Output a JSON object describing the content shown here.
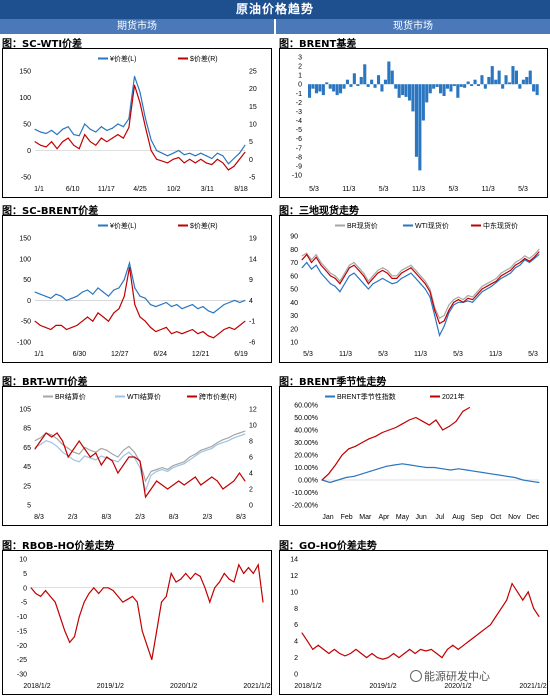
{
  "header": {
    "title": "原油价格趋势",
    "left_section": "期货市场",
    "right_section": "现货市场"
  },
  "watermark": "能源研发中心",
  "colors": {
    "blue": "#2a76c0",
    "red": "#c00000",
    "gray": "#a6a6a6",
    "lightblue": "#9dc3e6",
    "header": "#1e4f8f"
  },
  "chart_data": [
    {
      "id": "sc_wti",
      "type": "line",
      "title": "图：SC-WTI价差",
      "x_ticks": [
        "1/1",
        "6/10",
        "11/17",
        "4/25",
        "10/2",
        "3/11",
        "8/18"
      ],
      "y_left_ticks": [
        "150",
        "100",
        "50",
        "0",
        "-50"
      ],
      "y_right_ticks": [
        "25",
        "20",
        "15",
        "10",
        "5",
        "0",
        "-5"
      ],
      "ylim_left": [
        -50,
        150
      ],
      "ylim_right": [
        -5,
        25
      ],
      "series": [
        {
          "name": "¥价差(L)",
          "axis": "left",
          "color": "blue",
          "values": [
            40,
            35,
            32,
            38,
            30,
            40,
            45,
            30,
            28,
            50,
            40,
            35,
            45,
            38,
            42,
            50,
            45,
            60,
            140,
            110,
            60,
            20,
            0,
            -5,
            -10,
            -5,
            0,
            -8,
            -5,
            -10,
            -5,
            -10,
            -15,
            -5,
            -10,
            -25,
            -15,
            -5,
            10
          ]
        },
        {
          "name": "$价差(R)",
          "axis": "right",
          "color": "red",
          "values": [
            5,
            4,
            3.5,
            5,
            3,
            5,
            6,
            4,
            3,
            7,
            5,
            4,
            6,
            5,
            6,
            7,
            6,
            9,
            21,
            16,
            9,
            2.5,
            0,
            -0.5,
            -1,
            0,
            0.5,
            -1,
            0,
            -1,
            0,
            -1,
            -1.5,
            0,
            -1,
            -3,
            -2,
            0,
            2
          ]
        }
      ]
    },
    {
      "id": "brent",
      "type": "bar",
      "title": "图：BRENT基差",
      "x_ticks": [
        "5/3",
        "11/3",
        "5/3",
        "11/3",
        "5/3",
        "11/3",
        "5/3"
      ],
      "y_ticks": [
        "3",
        "2",
        "1",
        "0",
        "-1",
        "-2",
        "-3",
        "-4",
        "-5",
        "-6",
        "-7",
        "-8",
        "-9",
        "-10"
      ],
      "ylim": [
        -10,
        3
      ],
      "series": [
        {
          "name": "",
          "color": "blue",
          "values": [
            -1.5,
            -0.5,
            -1,
            -0.8,
            -1.2,
            0.2,
            -0.5,
            -0.8,
            -1.2,
            -1,
            -0.5,
            0.5,
            -0.3,
            1.2,
            -0.2,
            0.8,
            2.2,
            -0.3,
            0.5,
            -0.4,
            1,
            -0.8,
            0.5,
            2.5,
            1.5,
            -0.5,
            -1.5,
            -1.2,
            -1.4,
            -1.8,
            -3,
            -8,
            -9.5,
            -4,
            -2,
            -1,
            -0.5,
            -0.3,
            -1,
            -1.3,
            -0.5,
            -0.8,
            -0.2,
            -1.5,
            -0.3,
            -0.4,
            0.3,
            -0.2,
            0.5,
            -0.2,
            1,
            -0.5,
            0.8,
            2,
            0.5,
            1.5,
            -0.5,
            1,
            0.2,
            2,
            1.5,
            -0.5,
            0.5,
            0.8,
            1.5,
            -0.8,
            -1.2
          ]
        }
      ]
    },
    {
      "id": "sc_brent",
      "type": "line",
      "title": "图：SC-BRENT价差",
      "x_ticks": [
        "1/1",
        "6/30",
        "12/27",
        "6/24",
        "12/21",
        "6/19"
      ],
      "y_left_ticks": [
        "150",
        "100",
        "50",
        "0",
        "-50",
        "-100"
      ],
      "y_right_ticks": [
        "19",
        "14",
        "9",
        "4",
        "-1",
        "-6"
      ],
      "ylim_left": [
        -100,
        150
      ],
      "ylim_right": [
        -6,
        19
      ],
      "series": [
        {
          "name": "¥价差(L)",
          "axis": "left",
          "color": "blue",
          "values": [
            20,
            15,
            10,
            5,
            15,
            10,
            0,
            5,
            10,
            20,
            25,
            15,
            30,
            20,
            10,
            25,
            30,
            50,
            90,
            30,
            10,
            5,
            -10,
            -15,
            -10,
            -5,
            -15,
            -10,
            -20,
            -15,
            -10,
            -20,
            -15,
            -25,
            -30,
            -20,
            -10,
            -5,
            0,
            -5,
            0
          ]
        },
        {
          "name": "$价差(R)",
          "axis": "right",
          "color": "red",
          "values": [
            -1,
            -2,
            -2.5,
            -3,
            -2,
            -2,
            -3,
            -2.5,
            -2,
            -1,
            0,
            -1,
            1,
            0,
            -1,
            1,
            2,
            5,
            12,
            3,
            0,
            -1,
            -2.5,
            -3.5,
            -3,
            -2.5,
            -4,
            -3.5,
            -4,
            -3.5,
            -3,
            -4,
            -3.5,
            -4.5,
            -5,
            -4,
            -3,
            -2.5,
            -3,
            -2,
            -1
          ]
        }
      ]
    },
    {
      "id": "spot3",
      "type": "line",
      "title": "图：三地现货走势",
      "x_ticks": [
        "5/3",
        "11/3",
        "5/3",
        "11/3",
        "5/3",
        "11/3",
        "5/3"
      ],
      "y_ticks": [
        "90",
        "80",
        "70",
        "60",
        "50",
        "40",
        "30",
        "20",
        "10"
      ],
      "ylim": [
        10,
        90
      ],
      "series": [
        {
          "name": "BR现货价",
          "color": "gray",
          "values": [
            75,
            77,
            72,
            76,
            70,
            66,
            62,
            60,
            56,
            62,
            68,
            70,
            66,
            62,
            56,
            60,
            64,
            66,
            64,
            60,
            60,
            64,
            66,
            68,
            64,
            60,
            56,
            50,
            36,
            28,
            30,
            38,
            42,
            44,
            42,
            45,
            44,
            48,
            52,
            54,
            56,
            58,
            62,
            64,
            66,
            70,
            72,
            75,
            73,
            76,
            80
          ]
        },
        {
          "name": "WTI现货价",
          "color": "blue",
          "values": [
            66,
            70,
            65,
            68,
            62,
            58,
            54,
            52,
            48,
            54,
            60,
            62,
            58,
            54,
            50,
            54,
            56,
            58,
            56,
            54,
            55,
            58,
            60,
            62,
            58,
            54,
            50,
            44,
            30,
            15,
            22,
            32,
            38,
            40,
            40,
            41,
            40,
            44,
            48,
            50,
            52,
            55,
            58,
            60,
            62,
            66,
            68,
            72,
            70,
            73,
            76
          ]
        },
        {
          "name": "中东现货价",
          "color": "red",
          "values": [
            72,
            76,
            70,
            74,
            68,
            64,
            60,
            58,
            54,
            60,
            66,
            68,
            64,
            60,
            54,
            58,
            62,
            64,
            62,
            58,
            58,
            62,
            64,
            66,
            62,
            58,
            54,
            48,
            34,
            24,
            26,
            34,
            40,
            42,
            40,
            43,
            42,
            46,
            50,
            52,
            54,
            56,
            60,
            62,
            64,
            68,
            70,
            73,
            71,
            74,
            78
          ]
        }
      ]
    },
    {
      "id": "brt_wti",
      "type": "line",
      "title": "图：BRT-WTI价差",
      "x_ticks": [
        "8/3",
        "2/3",
        "8/3",
        "2/3",
        "8/3",
        "2/3",
        "8/3"
      ],
      "y_left_ticks": [
        "105",
        "85",
        "65",
        "45",
        "25",
        "5"
      ],
      "y_right_ticks": [
        "12",
        "10",
        "8",
        "6",
        "4",
        "2",
        "0"
      ],
      "ylim_left": [
        5,
        105
      ],
      "ylim_right": [
        0,
        12
      ],
      "series": [
        {
          "name": "BR结算价",
          "axis": "left",
          "color": "gray",
          "values": [
            72,
            75,
            80,
            78,
            74,
            68,
            64,
            60,
            58,
            65,
            62,
            60,
            64,
            62,
            58,
            55,
            62,
            66,
            60,
            50,
            30,
            40,
            42,
            44,
            42,
            46,
            48,
            50,
            55,
            58,
            62,
            64,
            66,
            70,
            73,
            75,
            78,
            80,
            82
          ]
        },
        {
          "name": "WTI结算价",
          "axis": "left",
          "color": "lightblue",
          "values": [
            65,
            68,
            72,
            70,
            66,
            60,
            56,
            52,
            50,
            56,
            54,
            52,
            56,
            54,
            52,
            50,
            56,
            60,
            54,
            44,
            20,
            36,
            40,
            42,
            40,
            44,
            46,
            48,
            52,
            56,
            60,
            62,
            64,
            68,
            70,
            72,
            75,
            77,
            79
          ]
        },
        {
          "name": "跨市价差(R)",
          "axis": "right",
          "color": "red",
          "values": [
            7,
            8,
            9,
            8.5,
            9,
            8,
            6,
            7,
            8,
            7,
            6,
            6.5,
            5,
            6,
            5.5,
            4,
            5,
            6,
            6,
            5.5,
            1,
            2,
            3,
            2.5,
            2,
            2.5,
            3,
            2.5,
            3,
            3.5,
            2.5,
            3,
            3.5,
            3,
            2,
            2.5,
            3,
            4,
            3
          ]
        }
      ]
    },
    {
      "id": "brent_season",
      "type": "line",
      "title": "图：BRENT季节性走势",
      "x_ticks": [
        "Jan",
        "Feb",
        "Mar",
        "Apr",
        "May",
        "Jun",
        "Jul",
        "Aug",
        "Sep",
        "Oct",
        "Nov",
        "Dec"
      ],
      "y_ticks": [
        "60.00%",
        "50.00%",
        "40.00%",
        "30.00%",
        "20.00%",
        "10.00%",
        "0.00%",
        "-10.00%",
        "-20.00%"
      ],
      "ylim": [
        -0.2,
        0.6
      ],
      "series": [
        {
          "name": "BRENT季节性指数",
          "color": "blue",
          "values": [
            0.0,
            -0.02,
            0.0,
            0.02,
            0.03,
            0.05,
            0.07,
            0.09,
            0.11,
            0.12,
            0.13,
            0.12,
            0.11,
            0.1,
            0.1,
            0.09,
            0.08,
            0.09,
            0.08,
            0.07,
            0.06,
            0.05,
            0.04,
            0.03,
            0.02,
            0.0,
            -0.01,
            -0.02
          ]
        },
        {
          "name": "2021年",
          "color": "red",
          "values": [
            0.0,
            0.05,
            0.12,
            0.2,
            0.25,
            0.27,
            0.3,
            0.33,
            0.35,
            0.38,
            0.4,
            0.42,
            0.45,
            0.48,
            0.5,
            0.47,
            0.44,
            0.48,
            0.4,
            0.43,
            0.47,
            0.55,
            0.58
          ]
        }
      ]
    },
    {
      "id": "rbob_ho",
      "type": "line",
      "title": "图：RBOB-HO价差走势",
      "x_ticks": [
        "2018/1/2",
        "2019/1/2",
        "2020/1/2",
        "2021/1/2"
      ],
      "y_ticks": [
        "10",
        "5",
        "0",
        "-5",
        "-10",
        "-15",
        "-20",
        "-25",
        "-30"
      ],
      "ylim": [
        -30,
        10
      ],
      "series": [
        {
          "name": "",
          "color": "red",
          "values": [
            0,
            -2,
            -3,
            -1,
            -3,
            -5,
            -10,
            -15,
            -19,
            -17,
            -10,
            -5,
            -2,
            0,
            -2,
            0,
            0,
            -1,
            -3,
            -5,
            -4,
            -3,
            -5,
            -15,
            -20,
            -25,
            -15,
            -5,
            -3,
            5,
            2,
            3,
            5,
            3,
            5,
            4,
            0,
            -5,
            0,
            2,
            5,
            3,
            2,
            8,
            5,
            7,
            5,
            8,
            -5
          ]
        }
      ]
    },
    {
      "id": "go_ho",
      "type": "line",
      "title": "图：GO-HO价差走势",
      "x_ticks": [
        "2018/1/2",
        "2019/1/2",
        "2020/1/2",
        "2021/1/2"
      ],
      "y_ticks": [
        "14",
        "12",
        "10",
        "8",
        "6",
        "4",
        "2",
        "0"
      ],
      "ylim": [
        0,
        14
      ],
      "series": [
        {
          "name": "",
          "color": "red",
          "values": [
            5,
            4,
            3,
            3.5,
            3,
            2.5,
            3,
            2.5,
            2.2,
            2.5,
            3,
            2.5,
            2,
            2.5,
            2,
            1.8,
            2,
            2.5,
            2,
            2.5,
            3,
            2.5,
            3,
            2.8,
            3,
            2.5,
            2,
            3,
            3.5,
            3,
            3.5,
            4,
            4.5,
            5,
            5.5,
            6,
            7,
            8,
            9,
            11,
            10,
            9,
            10,
            8,
            7
          ]
        }
      ]
    }
  ]
}
